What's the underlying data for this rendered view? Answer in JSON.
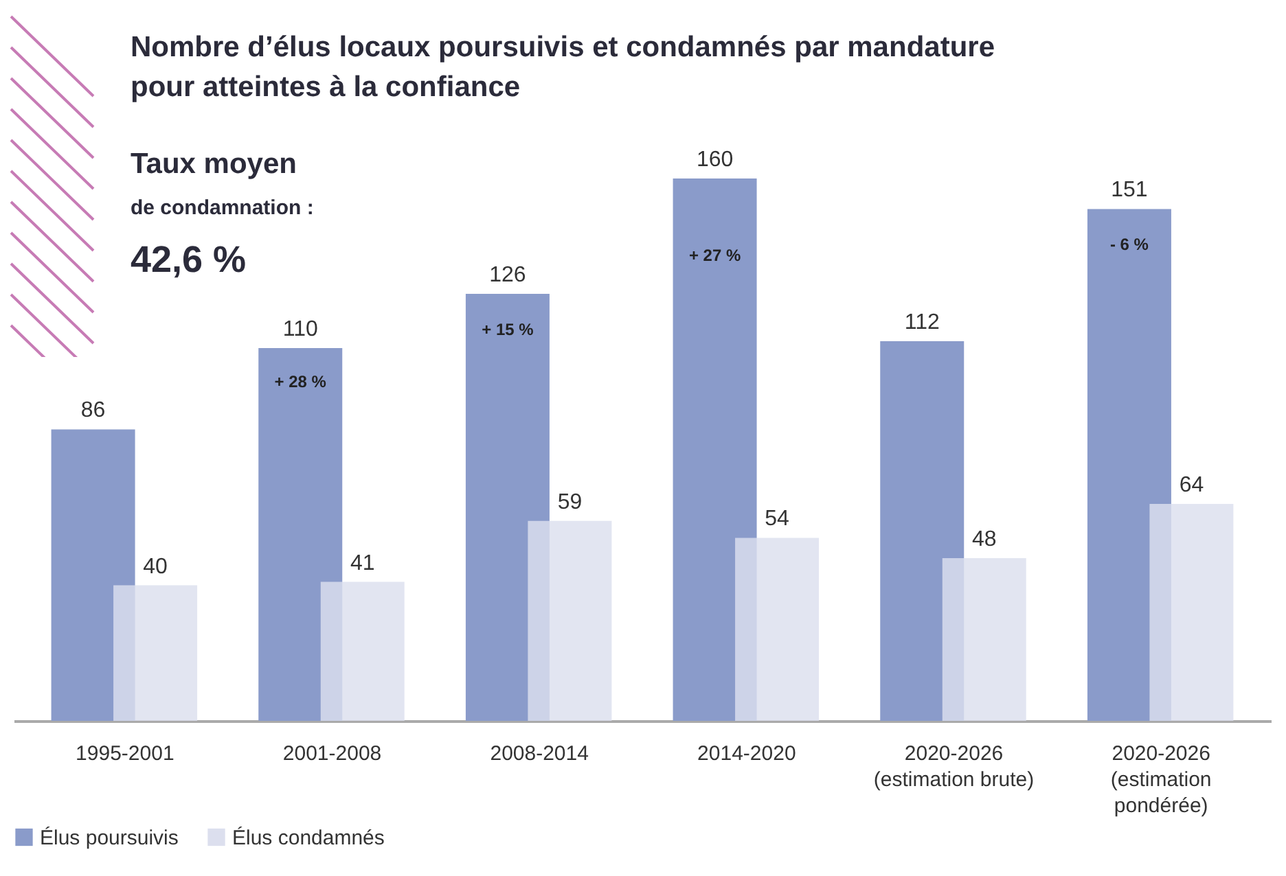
{
  "chart_data": {
    "type": "bar",
    "title": "Nombre d’élus locaux poursuivis et condamnés par mandature pour atteintes à la confiance",
    "categories": [
      "1995-2001",
      "2001-2008",
      "2008-2014",
      "2014-2020",
      "2020-2026 (estimation brute)",
      "2020-2026 (estimation pondérée)"
    ],
    "series": [
      {
        "name": "Élus poursuivis",
        "color": "#8a9bca",
        "values": [
          86,
          110,
          126,
          160,
          112,
          151
        ]
      },
      {
        "name": "Élus condamnés",
        "color": "#dcdfee",
        "values": [
          40,
          41,
          59,
          54,
          48,
          64
        ]
      }
    ],
    "annotations": [
      "Taux moyen",
      "de condamnation :",
      "42,6 %",
      "+ 28 %",
      "+ 15 %",
      "+ 27 %",
      "- 6 %"
    ],
    "data_labels": true,
    "legend": "bottom",
    "grid": false,
    "tick_labels": "x"
  }
}
